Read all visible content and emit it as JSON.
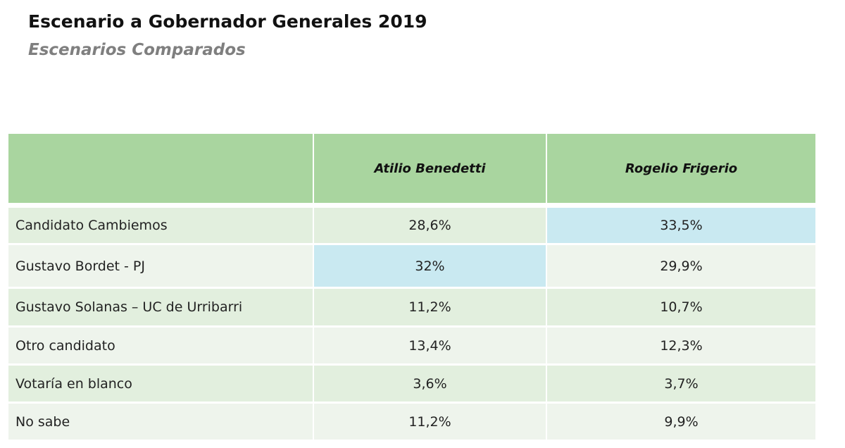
{
  "header": {
    "title": "Escenario a Gobernador Generales 2019",
    "subtitle": "Escenarios Comparados"
  },
  "table": {
    "columns": [
      "Atilio Benedetti",
      "Rogelio Frigerio"
    ],
    "rows": [
      {
        "label": "Candidato Cambiemos",
        "values": [
          "28,6%",
          "33,5%"
        ]
      },
      {
        "label": "Gustavo Bordet - PJ",
        "values": [
          "32%",
          "29,9%"
        ]
      },
      {
        "label": "Gustavo Solanas – UC de Urribarri",
        "values": [
          "11,2%",
          "10,7%"
        ]
      },
      {
        "label": "Otro candidato",
        "values": [
          "13,4%",
          "12,3%"
        ]
      },
      {
        "label": "Votaría en blanco",
        "values": [
          "3,6%",
          "3,7%"
        ]
      },
      {
        "label": "No sabe",
        "values": [
          "11,2%",
          "9,9%"
        ]
      }
    ]
  }
}
